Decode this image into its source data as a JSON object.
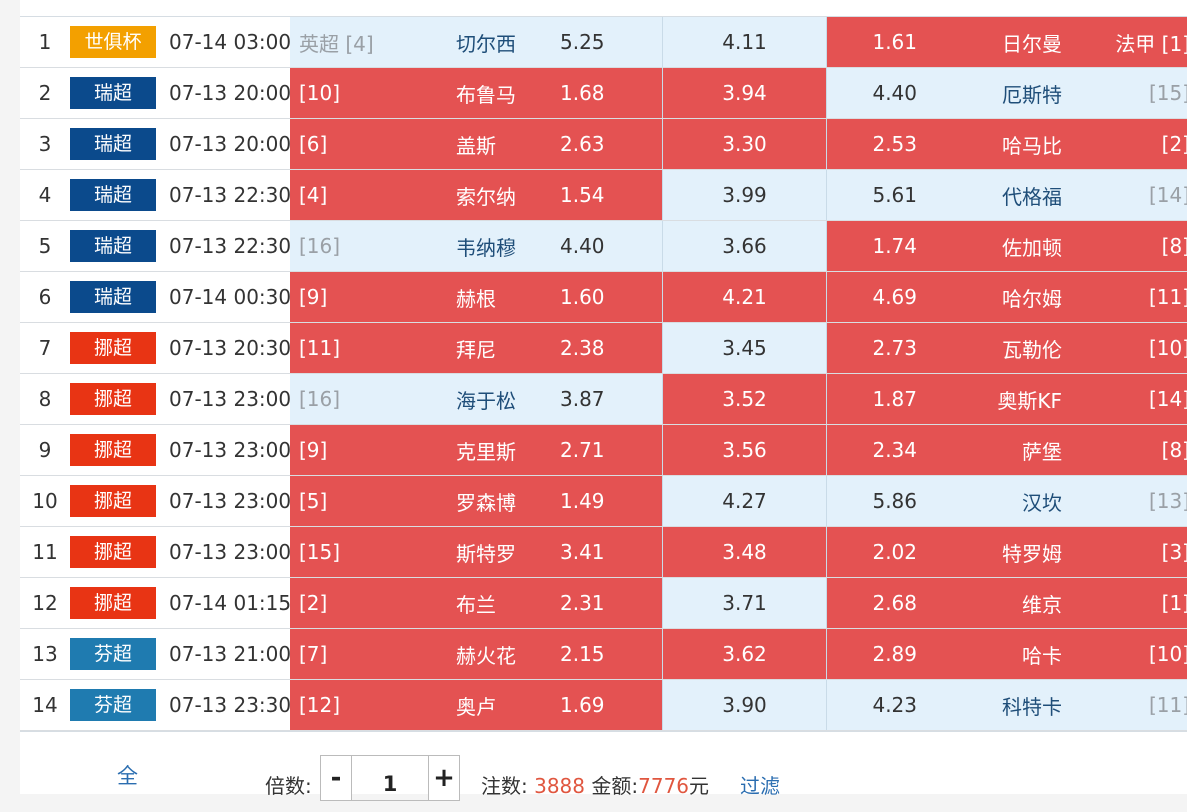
{
  "colors": {
    "selected": "#e45252",
    "unselected": "#e3f1fb",
    "league_shijuebei": "#f3a000",
    "league_ruichao": "#0b4a8c",
    "league_nuochao": "#e83414",
    "league_fenchao": "#1f7bb0"
  },
  "matches": [
    {
      "num": "1",
      "league": "世俱杯",
      "league_color": "#f3a000",
      "time": "07-14 03:00",
      "home_rank": "英超 [4]",
      "home": "切尔西",
      "home_odd": "5.25",
      "draw_odd": "4.11",
      "away_odd": "1.61",
      "away": "日尔曼",
      "away_rank": "法甲 [1]",
      "sel": [
        false,
        false,
        true
      ]
    },
    {
      "num": "2",
      "league": "瑞超",
      "league_color": "#0b4a8c",
      "time": "07-13 20:00",
      "home_rank": "[10]",
      "home": "布鲁马",
      "home_odd": "1.68",
      "draw_odd": "3.94",
      "away_odd": "4.40",
      "away": "厄斯特",
      "away_rank": "[15]",
      "sel": [
        true,
        true,
        false
      ]
    },
    {
      "num": "3",
      "league": "瑞超",
      "league_color": "#0b4a8c",
      "time": "07-13 20:00",
      "home_rank": "[6]",
      "home": "盖斯",
      "home_odd": "2.63",
      "draw_odd": "3.30",
      "away_odd": "2.53",
      "away": "哈马比",
      "away_rank": "[2]",
      "sel": [
        true,
        true,
        true
      ]
    },
    {
      "num": "4",
      "league": "瑞超",
      "league_color": "#0b4a8c",
      "time": "07-13 22:30",
      "home_rank": "[4]",
      "home": "索尔纳",
      "home_odd": "1.54",
      "draw_odd": "3.99",
      "away_odd": "5.61",
      "away": "代格福",
      "away_rank": "[14]",
      "sel": [
        true,
        false,
        false
      ]
    },
    {
      "num": "5",
      "league": "瑞超",
      "league_color": "#0b4a8c",
      "time": "07-13 22:30",
      "home_rank": "[16]",
      "home": "韦纳穆",
      "home_odd": "4.40",
      "draw_odd": "3.66",
      "away_odd": "1.74",
      "away": "佐加顿",
      "away_rank": "[8]",
      "sel": [
        false,
        false,
        true
      ]
    },
    {
      "num": "6",
      "league": "瑞超",
      "league_color": "#0b4a8c",
      "time": "07-14 00:30",
      "home_rank": "[9]",
      "home": "赫根",
      "home_odd": "1.60",
      "draw_odd": "4.21",
      "away_odd": "4.69",
      "away": "哈尔姆",
      "away_rank": "[11]",
      "sel": [
        true,
        true,
        true
      ]
    },
    {
      "num": "7",
      "league": "挪超",
      "league_color": "#e83414",
      "time": "07-13 20:30",
      "home_rank": "[11]",
      "home": "拜尼",
      "home_odd": "2.38",
      "draw_odd": "3.45",
      "away_odd": "2.73",
      "away": "瓦勒伦",
      "away_rank": "[10]",
      "sel": [
        true,
        false,
        true
      ]
    },
    {
      "num": "8",
      "league": "挪超",
      "league_color": "#e83414",
      "time": "07-13 23:00",
      "home_rank": "[16]",
      "home": "海于松",
      "home_odd": "3.87",
      "draw_odd": "3.52",
      "away_odd": "1.87",
      "away": "奥斯KF",
      "away_rank": "[14]",
      "sel": [
        false,
        true,
        true
      ]
    },
    {
      "num": "9",
      "league": "挪超",
      "league_color": "#e83414",
      "time": "07-13 23:00",
      "home_rank": "[9]",
      "home": "克里斯",
      "home_odd": "2.71",
      "draw_odd": "3.56",
      "away_odd": "2.34",
      "away": "萨堡",
      "away_rank": "[8]",
      "sel": [
        true,
        true,
        true
      ]
    },
    {
      "num": "10",
      "league": "挪超",
      "league_color": "#e83414",
      "time": "07-13 23:00",
      "home_rank": "[5]",
      "home": "罗森博",
      "home_odd": "1.49",
      "draw_odd": "4.27",
      "away_odd": "5.86",
      "away": "汉坎",
      "away_rank": "[13]",
      "sel": [
        true,
        false,
        false
      ]
    },
    {
      "num": "11",
      "league": "挪超",
      "league_color": "#e83414",
      "time": "07-13 23:00",
      "home_rank": "[15]",
      "home": "斯特罗",
      "home_odd": "3.41",
      "draw_odd": "3.48",
      "away_odd": "2.02",
      "away": "特罗姆",
      "away_rank": "[3]",
      "sel": [
        true,
        true,
        true
      ]
    },
    {
      "num": "12",
      "league": "挪超",
      "league_color": "#e83414",
      "time": "07-14 01:15",
      "home_rank": "[2]",
      "home": "布兰",
      "home_odd": "2.31",
      "draw_odd": "3.71",
      "away_odd": "2.68",
      "away": "维京",
      "away_rank": "[1]",
      "sel": [
        true,
        false,
        true
      ]
    },
    {
      "num": "13",
      "league": "芬超",
      "league_color": "#1f7bb0",
      "time": "07-13 21:00",
      "home_rank": "[7]",
      "home": "赫火花",
      "home_odd": "2.15",
      "draw_odd": "3.62",
      "away_odd": "2.89",
      "away": "哈卡",
      "away_rank": "[10]",
      "sel": [
        true,
        true,
        true
      ]
    },
    {
      "num": "14",
      "league": "芬超",
      "league_color": "#1f7bb0",
      "time": "07-13 23:30",
      "home_rank": "[12]",
      "home": "奥卢",
      "home_odd": "1.69",
      "draw_odd": "3.90",
      "away_odd": "4.23",
      "away": "科特卡",
      "away_rank": "[11]",
      "sel": [
        true,
        false,
        false
      ]
    }
  ],
  "footer": {
    "all_label": "全",
    "multiplier_label": "倍数:",
    "minus": "-",
    "multiplier_value": "1",
    "plus": "+",
    "bets_label": "注数:",
    "bets_value": "3888",
    "amount_label": "金额:",
    "amount_value": "7776",
    "amount_unit": "元",
    "filter_label": "过滤"
  }
}
